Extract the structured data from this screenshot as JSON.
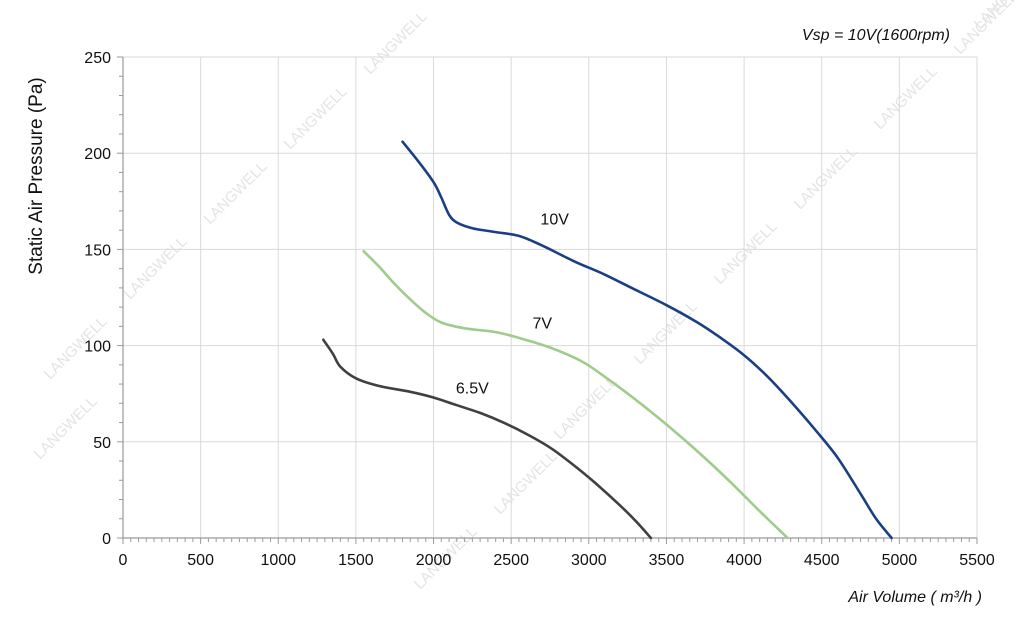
{
  "watermark": "LANGWELL",
  "chart_data": {
    "type": "line",
    "title": "",
    "annotation": "Vsp = 10V(1600rpm)",
    "xlabel": "Air Volume ( m³/h )",
    "ylabel": "Static Air Pressure  (Pa)",
    "xlim": [
      0,
      5500
    ],
    "ylim": [
      0,
      250
    ],
    "xticks": [
      0,
      500,
      1000,
      1500,
      2000,
      2500,
      3000,
      3500,
      4000,
      4500,
      5000,
      5500
    ],
    "yticks": [
      0,
      50,
      100,
      150,
      200,
      250
    ],
    "grid": true,
    "series": [
      {
        "name": "10V",
        "color": "#1a3f86",
        "label_at": [
          2780,
          163
        ],
        "points": [
          [
            1800,
            206
          ],
          [
            1900,
            196
          ],
          [
            2000,
            185
          ],
          [
            2050,
            177
          ],
          [
            2100,
            168
          ],
          [
            2150,
            164
          ],
          [
            2250,
            161
          ],
          [
            2400,
            159
          ],
          [
            2550,
            157
          ],
          [
            2700,
            152
          ],
          [
            2900,
            144
          ],
          [
            3100,
            137
          ],
          [
            3300,
            129
          ],
          [
            3500,
            121
          ],
          [
            3700,
            112
          ],
          [
            3850,
            104
          ],
          [
            4000,
            95
          ],
          [
            4150,
            84
          ],
          [
            4300,
            71
          ],
          [
            4450,
            57
          ],
          [
            4600,
            42
          ],
          [
            4750,
            23
          ],
          [
            4850,
            10
          ],
          [
            4950,
            0
          ]
        ]
      },
      {
        "name": "7V",
        "color": "#9fcc8a",
        "label_at": [
          2700,
          109
        ],
        "points": [
          [
            1550,
            149
          ],
          [
            1650,
            141
          ],
          [
            1750,
            132
          ],
          [
            1850,
            124
          ],
          [
            1950,
            117
          ],
          [
            2050,
            112
          ],
          [
            2200,
            109
          ],
          [
            2400,
            107
          ],
          [
            2550,
            104
          ],
          [
            2750,
            99
          ],
          [
            2950,
            92
          ],
          [
            3100,
            84
          ],
          [
            3300,
            72
          ],
          [
            3500,
            59
          ],
          [
            3700,
            45
          ],
          [
            3900,
            30
          ],
          [
            4100,
            14
          ],
          [
            4280,
            0
          ]
        ]
      },
      {
        "name": "6.5V",
        "color": "#404040",
        "label_at": [
          2250,
          75
        ],
        "points": [
          [
            1290,
            103
          ],
          [
            1350,
            96
          ],
          [
            1400,
            89
          ],
          [
            1500,
            83
          ],
          [
            1650,
            79
          ],
          [
            1850,
            76
          ],
          [
            2000,
            73
          ],
          [
            2150,
            69
          ],
          [
            2300,
            65
          ],
          [
            2450,
            60
          ],
          [
            2600,
            54
          ],
          [
            2750,
            47
          ],
          [
            2900,
            38
          ],
          [
            3050,
            28
          ],
          [
            3200,
            17
          ],
          [
            3300,
            9
          ],
          [
            3400,
            0
          ]
        ]
      }
    ]
  }
}
